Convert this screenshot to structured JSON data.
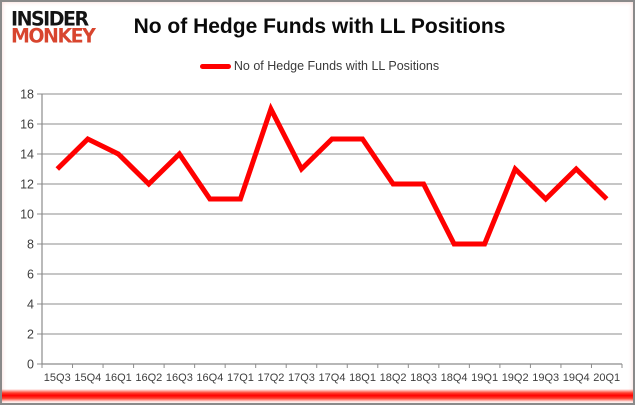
{
  "logo": {
    "line1": "INSIDER",
    "line2": "MONKEY",
    "line1_color": "#141414",
    "line2_color": "#d8452e"
  },
  "header": {
    "title": "No of Hedge Funds with LL Positions"
  },
  "legend": {
    "label": "No of Hedge Funds with LL Positions",
    "swatch_color": "#ff0000"
  },
  "chart_data": {
    "type": "line",
    "title": "No of Hedge Funds with LL Positions",
    "categories": [
      "15Q3",
      "15Q4",
      "16Q1",
      "16Q2",
      "16Q3",
      "16Q4",
      "17Q1",
      "17Q2",
      "17Q3",
      "17Q4",
      "18Q1",
      "18Q2",
      "18Q3",
      "18Q4",
      "19Q1",
      "19Q2",
      "19Q3",
      "19Q4",
      "20Q1"
    ],
    "series": [
      {
        "name": "No of Hedge Funds with LL Positions",
        "color": "#ff0000",
        "values": [
          13,
          15,
          14,
          12,
          14,
          11,
          11,
          17,
          13,
          15,
          15,
          12,
          12,
          8,
          8,
          13,
          11,
          13,
          11
        ]
      }
    ],
    "xlabel": "",
    "ylabel": "",
    "ylim": [
      0,
      18
    ],
    "yticks": [
      0,
      2,
      4,
      6,
      8,
      10,
      12,
      14,
      16,
      18
    ],
    "grid": true,
    "legend_position": "top"
  },
  "colors": {
    "grid": "#8c8c8c",
    "axis": "#8c8c8c",
    "tick_label": "#3f3f3f",
    "series_line": "#ff0000",
    "bottom_band": "#ff0000",
    "frame_border": "#8a8a8a"
  }
}
